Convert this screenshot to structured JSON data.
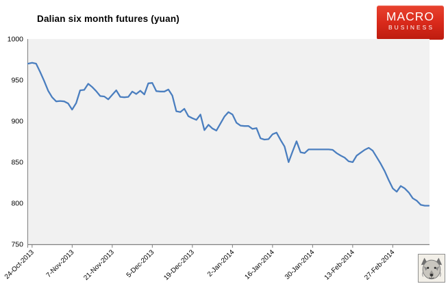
{
  "title": "Dalian six month futures (yuan)",
  "logo": {
    "line1": "MACRO",
    "line2": "BUSINESS",
    "bg_color_top": "#e8432f",
    "bg_color_bottom": "#bd1c0f",
    "text_color": "#ffffff"
  },
  "watermark": {
    "name": "wolf-logo-image"
  },
  "chart_data": {
    "type": "line",
    "title": "Dalian six month futures (yuan)",
    "xlabel": "",
    "ylabel": "",
    "ylim": [
      750,
      1000
    ],
    "y_ticks": [
      1000,
      950,
      900,
      850,
      800,
      750
    ],
    "grid": false,
    "legend": "none",
    "plot_bg": "#f1f1f1",
    "axis_color": "#7f7f7f",
    "label_color": "#000000",
    "x_tick_labels": [
      "24-Oct-2013",
      "7-Nov-2013",
      "21-Nov-2013",
      "5-Dec-2013",
      "19-Dec-2013",
      "2-Jan-2014",
      "16-Jan-2014",
      "30-Jan-2014",
      "13-Feb-2014",
      "27-Feb-2014"
    ],
    "x_tick_start_index": 1,
    "x_ticks_every": 10,
    "x_label_rotation_deg": -45,
    "series": [
      {
        "name": "Dalian six month futures (yuan)",
        "color": "#4a7ebf",
        "values": [
          970,
          971,
          970,
          960,
          949,
          937,
          929,
          924,
          924.5,
          924,
          921.5,
          914,
          922,
          937.5,
          938,
          945.5,
          941.5,
          936.5,
          930.5,
          930,
          926.5,
          932,
          937.5,
          929.5,
          929,
          929.5,
          936,
          933,
          937,
          932.5,
          946,
          946.5,
          936.5,
          936,
          936,
          938.5,
          931,
          912,
          911,
          915,
          906,
          903.5,
          901.5,
          908,
          889,
          895.5,
          891,
          888.5,
          897,
          905.5,
          911,
          908,
          898,
          894.5,
          894,
          894,
          890.5,
          891.5,
          879,
          877.5,
          878,
          884,
          886,
          877,
          869,
          850,
          863,
          875.5,
          862,
          861,
          865.5,
          865.5,
          865.5,
          865.5,
          865.5,
          865.5,
          865,
          861,
          858,
          855.5,
          851,
          850,
          858,
          861.5,
          865,
          867.5,
          864,
          856,
          848,
          839,
          828,
          818,
          814,
          821,
          818,
          813,
          806,
          803,
          798,
          797,
          797
        ]
      }
    ]
  }
}
